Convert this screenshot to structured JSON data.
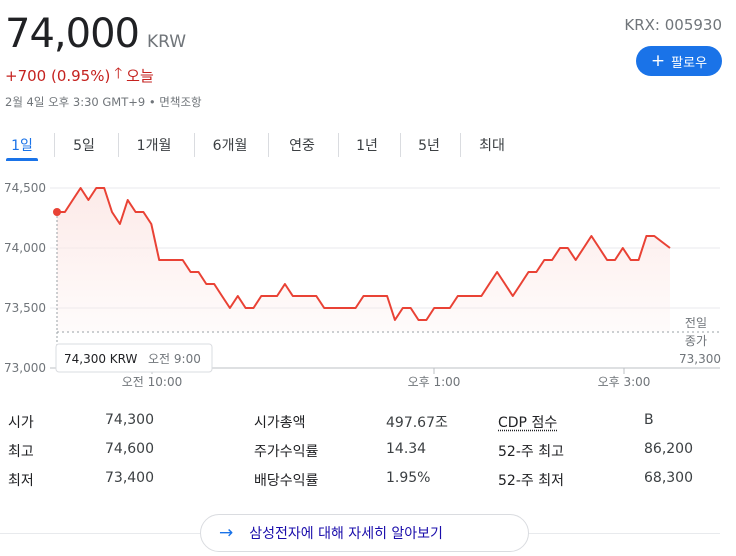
{
  "header": {
    "price": "74,000",
    "currency": "KRW",
    "ticker": "KRX: 005930",
    "follow_label": "팔로우",
    "change": "+700 (0.95%)",
    "change_period": "오늘",
    "timestamp": "2월 4일 오후 3:30 GMT+9 • 면책조항"
  },
  "tabs": [
    "1일",
    "5일",
    "1개월",
    "6개월",
    "연중",
    "1년",
    "5년",
    "최대"
  ],
  "active_tab": 0,
  "tooltip": {
    "price": "74,300 KRW",
    "time": "오전 9:00"
  },
  "prev_close_label": [
    "전일",
    "종가",
    "73,300"
  ],
  "chart_data": {
    "type": "line",
    "ylim": [
      73000,
      74500
    ],
    "y_ticks": [
      {
        "value": 74500,
        "label": "74,500"
      },
      {
        "value": 74000,
        "label": "74,000"
      },
      {
        "value": 73500,
        "label": "73,500"
      },
      {
        "value": 73000,
        "label": "73,000"
      }
    ],
    "x_ticks": [
      "오전 10:00",
      "오후 1:00",
      "오후 3:00"
    ],
    "previous_close": 73300,
    "line_color": "#e94235",
    "series": [
      {
        "values": [
          74300,
          74300,
          74400,
          74500,
          74400,
          74500,
          74500,
          74300,
          74200,
          74400,
          74300,
          74300,
          74200,
          73900,
          73900,
          73900,
          73900,
          73800,
          73800,
          73700,
          73700,
          73600,
          73500,
          73600,
          73500,
          73500,
          73600,
          73600,
          73600,
          73700,
          73600,
          73600,
          73600,
          73600,
          73500,
          73500,
          73500,
          73500,
          73500,
          73600,
          73600,
          73600,
          73600,
          73400,
          73500,
          73500,
          73400,
          73400,
          73500,
          73500,
          73500,
          73600,
          73600,
          73600,
          73600,
          73700,
          73800,
          73700,
          73600,
          73700,
          73800,
          73800,
          73900,
          73900,
          74000,
          74000,
          73900,
          74000,
          74100,
          74000,
          73900,
          73900,
          74000,
          73900,
          73900,
          74100,
          74100,
          74050,
          74000
        ]
      }
    ]
  },
  "stats": [
    [
      {
        "label": "시가",
        "value": "74,300"
      },
      {
        "label": "시가총액",
        "value": "497.67조"
      },
      {
        "label": "CDP 점수",
        "value": "B"
      }
    ],
    [
      {
        "label": "최고",
        "value": "74,600"
      },
      {
        "label": "주가수익률",
        "value": "14.34"
      },
      {
        "label": "52-주 최고",
        "value": "86,200"
      }
    ],
    [
      {
        "label": "최저",
        "value": "73,400"
      },
      {
        "label": "배당수익률",
        "value": "1.95%"
      },
      {
        "label": "52-주 최저",
        "value": "68,300"
      }
    ]
  ],
  "more_link": "삼성전자에 대해 자세히 알아보기"
}
